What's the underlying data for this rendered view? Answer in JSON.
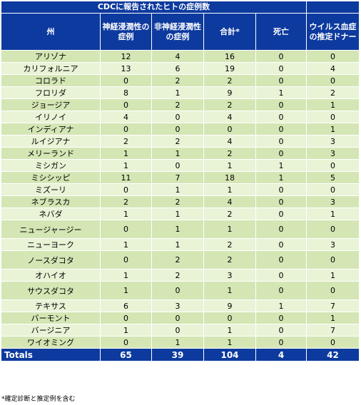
{
  "table": {
    "title": "CDCに報告されたヒトの症例数",
    "headers": [
      "州",
      "神経浸潤性の症例",
      "非神経浸潤性の症例",
      "合計*",
      "死亡",
      "ウイルス血症の推定ドナー"
    ],
    "rows": [
      [
        "アリゾナ",
        "12",
        "4",
        "16",
        "0",
        "0"
      ],
      [
        "カリフォルニア",
        "13",
        "6",
        "19",
        "0",
        "4"
      ],
      [
        "コロラド",
        "0",
        "2",
        "2",
        "0",
        "0"
      ],
      [
        "フロリダ",
        "8",
        "1",
        "9",
        "1",
        "2"
      ],
      [
        "ジョージア",
        "0",
        "2",
        "2",
        "0",
        "1"
      ],
      [
        "イリノイ",
        "4",
        "0",
        "4",
        "0",
        "0"
      ],
      [
        "インディアナ",
        "0",
        "0",
        "0",
        "0",
        "1"
      ],
      [
        "ルイジアナ",
        "2",
        "2",
        "4",
        "0",
        "3"
      ],
      [
        "メリーランド",
        "1",
        "1",
        "2",
        "0",
        "3"
      ],
      [
        "ミシガン",
        "1",
        "0",
        "1",
        "1",
        "0"
      ],
      [
        "ミシシッピ",
        "11",
        "7",
        "18",
        "1",
        "5"
      ],
      [
        "ミズーリ",
        "0",
        "1",
        "1",
        "0",
        "0"
      ],
      [
        "ネブラスカ",
        "2",
        "2",
        "4",
        "0",
        "3"
      ],
      [
        "ネバダ",
        "1",
        "1",
        "2",
        "0",
        "1"
      ],
      [
        "ニュージャージー",
        "0",
        "1",
        "1",
        "0",
        "0"
      ],
      [
        "ニューヨーク",
        "1",
        "1",
        "2",
        "0",
        "3"
      ],
      [
        "ノースダコタ",
        "0",
        "2",
        "2",
        "0",
        "0"
      ],
      [
        "オハイオ",
        "1",
        "2",
        "3",
        "0",
        "1"
      ],
      [
        "サウスダコタ",
        "1",
        "0",
        "1",
        "0",
        "0"
      ],
      [
        "テキサス",
        "6",
        "3",
        "9",
        "1",
        "7"
      ],
      [
        "バーモント",
        "0",
        "0",
        "0",
        "0",
        "1"
      ],
      [
        "バージニア",
        "1",
        "0",
        "1",
        "0",
        "7"
      ],
      [
        "ワイオミング",
        "0",
        "1",
        "1",
        "0",
        "0"
      ]
    ],
    "totals": [
      "Totals",
      "65",
      "39",
      "104",
      "4",
      "42"
    ]
  },
  "footnote": "*確定診断と推定例を含む",
  "colors": {
    "header_bg": "#0d3a9e",
    "row_dark": "#d4e6b4",
    "row_light": "#e9f3d6"
  }
}
